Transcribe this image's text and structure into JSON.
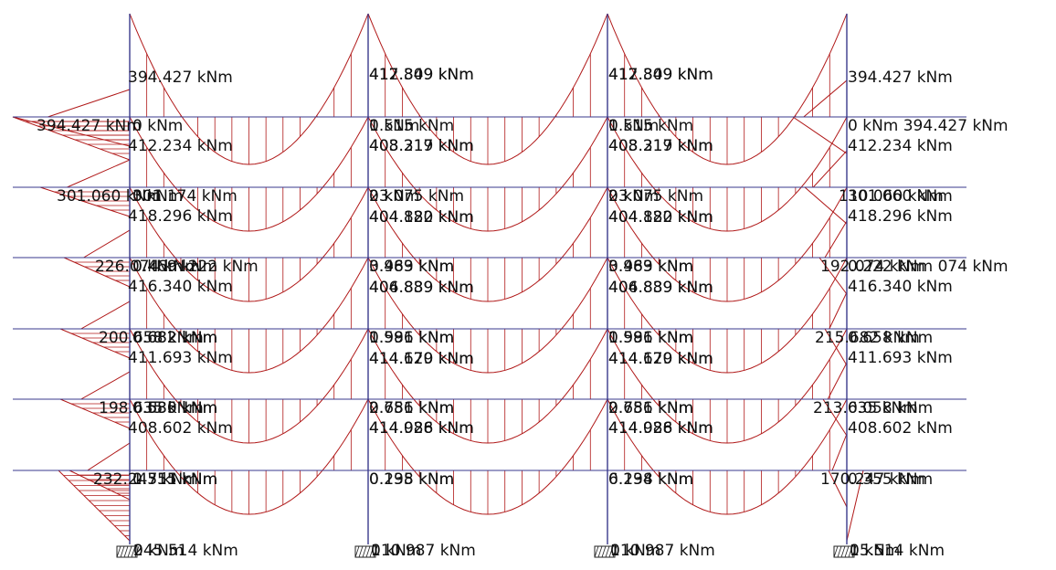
{
  "colors": {
    "beam": "#3a3a8c",
    "column": "#3a3a8c",
    "moment": "#b01818",
    "text": "#111111",
    "support": "#222222"
  },
  "labels": [
    {
      "id": "l-r1-c1-neg",
      "text": "394.427 kNm"
    },
    {
      "id": "l-r1-c2-neg",
      "text": "417.849 kNm"
    },
    {
      "id": "l-r1-c2-neg-b",
      "text": "412.309 kNm"
    },
    {
      "id": "l-r1-c3-neg",
      "text": "417.849 kNm"
    },
    {
      "id": "l-r1-c3-neg-b",
      "text": "412.309 kNm"
    },
    {
      "id": "l-r1-c4-neg",
      "text": "394.427 kNm"
    },
    {
      "id": "l-r1-left",
      "text": "394.427 kNm"
    },
    {
      "id": "l-r1-c1-zero",
      "text": "0 kNm"
    },
    {
      "id": "l-r1-c2-zero",
      "text": "0 kNm"
    },
    {
      "id": "l-r1-c2-zero-b",
      "text": "1.515 kNm"
    },
    {
      "id": "l-r1-c3-zero",
      "text": "0 kNm"
    },
    {
      "id": "l-r1-c3-zero-b",
      "text": "1.515 kNm"
    },
    {
      "id": "l-r1-right",
      "text": "0 kNm 394.427 kNm"
    },
    {
      "id": "l-r1-c1-mid",
      "text": "412.234 kNm"
    },
    {
      "id": "l-r1-c2-mid",
      "text": "408.317 kNm"
    },
    {
      "id": "l-r1-c2-mid-b",
      "text": "403.219 kNm"
    },
    {
      "id": "l-r1-c3-mid",
      "text": "408.317 kNm"
    },
    {
      "id": "l-r1-c3-mid-b",
      "text": "403.219 kNm"
    },
    {
      "id": "l-r1-c4-mid",
      "text": "412.234 kNm"
    },
    {
      "id": "l-r2-left",
      "text": "301.060 kNm"
    },
    {
      "id": "l-r2-c1-top",
      "text": "301.174 kNm"
    },
    {
      "id": "l-r2-c1-top-b",
      "text": "0 kNm"
    },
    {
      "id": "l-r2-c2-top",
      "text": "23.075 kNm"
    },
    {
      "id": "l-r2-c2-top-b",
      "text": "0 kNm"
    },
    {
      "id": "l-r2-c3-top",
      "text": "23.075 kNm"
    },
    {
      "id": "l-r2-c3-top-b",
      "text": "0 kNm"
    },
    {
      "id": "l-r2-right",
      "text": "110.060 kNm"
    },
    {
      "id": "l-r2-right-b",
      "text": "301.060 kNm"
    },
    {
      "id": "l-r2-c1-mid",
      "text": "418.296 kNm"
    },
    {
      "id": "l-r2-c2-mid",
      "text": "404.822 kNm"
    },
    {
      "id": "l-r2-c2-mid-b",
      "text": "404.180 kNm"
    },
    {
      "id": "l-r2-c3-mid",
      "text": "404.822 kNm"
    },
    {
      "id": "l-r2-c3-mid-b",
      "text": "404.180 kNm"
    },
    {
      "id": "l-r2-c4-mid",
      "text": "418.296 kNm"
    },
    {
      "id": "l-r3-left",
      "text": "226.074 kNm"
    },
    {
      "id": "l-r3-c1-top",
      "text": "0 kNm 222 kNm"
    },
    {
      "id": "l-r3-c1-top-b",
      "text": "0.469 kNm"
    },
    {
      "id": "l-r3-c2-top",
      "text": "3.983 kNm"
    },
    {
      "id": "l-r3-c2-top-b",
      "text": "0.469 kNm"
    },
    {
      "id": "l-r3-c3-top",
      "text": "3.983 kNm"
    },
    {
      "id": "l-r3-c3-top-b",
      "text": "0.469 kNm"
    },
    {
      "id": "l-r3-right",
      "text": "192.074 kNm"
    },
    {
      "id": "l-r3-right-b",
      "text": "0.222 kNm 074 kNm"
    },
    {
      "id": "l-r3-c1-mid",
      "text": "416.340 kNm"
    },
    {
      "id": "l-r3-c2-mid",
      "text": "406.839 kNm"
    },
    {
      "id": "l-r3-c2-mid-b",
      "text": "404.889 kNm"
    },
    {
      "id": "l-r3-c3-mid",
      "text": "406.839 kNm"
    },
    {
      "id": "l-r3-c3-mid-b",
      "text": "404.889 kNm"
    },
    {
      "id": "l-r3-c4-mid",
      "text": "416.340 kNm"
    },
    {
      "id": "l-r4-left",
      "text": "200.658 kNm"
    },
    {
      "id": "l-r4-c1-top",
      "text": "0.682 kNm"
    },
    {
      "id": "l-r4-c1-top-b",
      "text": "0.682 kNm"
    },
    {
      "id": "l-r4-c2-top",
      "text": "0.996 kNm"
    },
    {
      "id": "l-r4-c2-top-b",
      "text": "1.581 kNm"
    },
    {
      "id": "l-r4-c3-top",
      "text": "0.996 kNm"
    },
    {
      "id": "l-r4-c3-top-b",
      "text": "1.581 kNm"
    },
    {
      "id": "l-r4-right",
      "text": "215.682 kNm"
    },
    {
      "id": "l-r4-right-b",
      "text": "0.658 kNm"
    },
    {
      "id": "l-r4-c1-mid",
      "text": "411.693 kNm"
    },
    {
      "id": "l-r4-c2-mid",
      "text": "414.179 kNm"
    },
    {
      "id": "l-r4-c2-mid-b",
      "text": "414.620 kNm"
    },
    {
      "id": "l-r4-c3-mid",
      "text": "414.179 kNm"
    },
    {
      "id": "l-r4-c3-mid-b",
      "text": "414.620 kNm"
    },
    {
      "id": "l-r4-c4-mid",
      "text": "411.693 kNm"
    },
    {
      "id": "l-r5-left",
      "text": "198.635 kNm"
    },
    {
      "id": "l-r5-c1-top",
      "text": "0.635 kNm"
    },
    {
      "id": "l-r5-c1-top-b",
      "text": "0.580 kNm"
    },
    {
      "id": "l-r5-c2-top",
      "text": "0.756 kNm"
    },
    {
      "id": "l-r5-c2-top-b",
      "text": "2.681 kNm"
    },
    {
      "id": "l-r5-c3-top",
      "text": "0.756 kNm"
    },
    {
      "id": "l-r5-c3-top-b",
      "text": "2.681 kNm"
    },
    {
      "id": "l-r5-right",
      "text": "213.635 kNm"
    },
    {
      "id": "l-r5-right-b",
      "text": "0.058 kNm"
    },
    {
      "id": "l-r5-c1-mid",
      "text": "408.602 kNm"
    },
    {
      "id": "l-r5-c2-mid",
      "text": "414.926 kNm"
    },
    {
      "id": "l-r5-c2-mid-b",
      "text": "414.088 kNm"
    },
    {
      "id": "l-r5-c3-mid",
      "text": "414.926 kNm"
    },
    {
      "id": "l-r5-c3-mid-b",
      "text": "414.088 kNm"
    },
    {
      "id": "l-r5-c4-mid",
      "text": "408.602 kNm"
    },
    {
      "id": "l-r6-left",
      "text": "232.247 kNm"
    },
    {
      "id": "l-r6-c1-top",
      "text": "0.355 kNm"
    },
    {
      "id": "l-r6-c1-top-b",
      "text": "1.511 kNm"
    },
    {
      "id": "l-r6-c2-top",
      "text": "0.198 kNm"
    },
    {
      "id": "l-r6-c2-top-b",
      "text": "0.235 kNm"
    },
    {
      "id": "l-r6-c3-top",
      "text": "0.198 kNm"
    },
    {
      "id": "l-r6-c3-top-b",
      "text": "6.234 kNm"
    },
    {
      "id": "l-r6-right",
      "text": "170.247 kNm"
    },
    {
      "id": "l-r6-right-b",
      "text": "0.355 kNm"
    },
    {
      "id": "l-base-1",
      "text": "245.514 kNm"
    },
    {
      "id": "l-base-1-b",
      "text": "0 kNm"
    },
    {
      "id": "l-base-2",
      "text": "110.987 kNm"
    },
    {
      "id": "l-base-2-b",
      "text": "0 kNm"
    },
    {
      "id": "l-base-3",
      "text": "110.987 kNm"
    },
    {
      "id": "l-base-3-b",
      "text": "0 kNm"
    },
    {
      "id": "l-base-4",
      "text": "15.514 kNm"
    },
    {
      "id": "l-base-4-b",
      "text": "0 kNm"
    }
  ]
}
